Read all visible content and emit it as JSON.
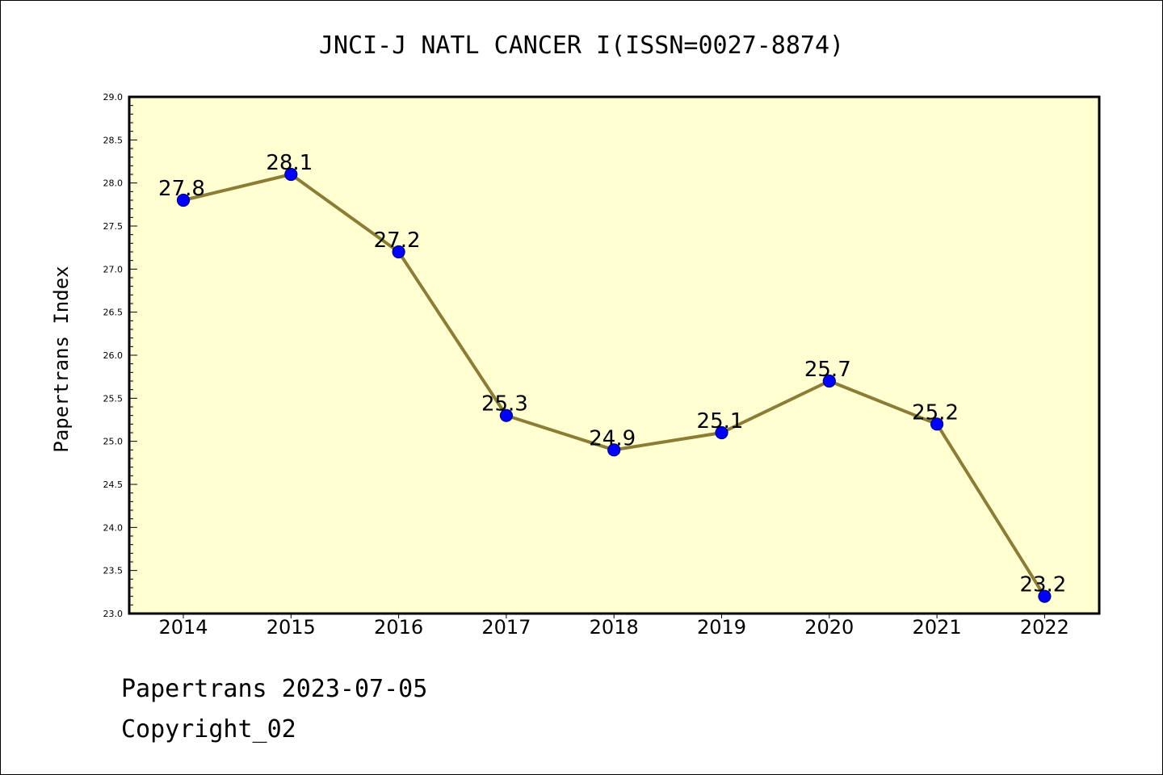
{
  "chart_data": {
    "type": "line",
    "title": "JNCI-J NATL CANCER I(ISSN=0027-8874)",
    "xlabel": "",
    "ylabel": "Papertrans Index",
    "categories": [
      "2014",
      "2015",
      "2016",
      "2017",
      "2018",
      "2019",
      "2020",
      "2021",
      "2022"
    ],
    "series": [
      {
        "values": [
          27.8,
          28.1,
          27.2,
          25.3,
          24.9,
          25.1,
          25.7,
          25.2,
          23.2
        ]
      }
    ],
    "data_labels": [
      "27.8",
      "28.1",
      "27.2",
      "25.3",
      "24.9",
      "25.1",
      "25.7",
      "25.2",
      "23.2"
    ],
    "ylim": [
      23.0,
      29.0
    ],
    "yticks": [
      "23.0",
      "23.5",
      "24.0",
      "24.5",
      "25.0",
      "25.5",
      "26.0",
      "26.5",
      "27.0",
      "27.5",
      "28.0",
      "28.5",
      "29.0"
    ],
    "grid": false,
    "colors": {
      "plot_background": "#ffffd2",
      "line": "#8b7d35",
      "marker_fill": "#0000ff",
      "marker_edge": "#000080"
    }
  },
  "footer": {
    "line1": "Papertrans 2023-07-05",
    "line2": "Copyright_02"
  }
}
